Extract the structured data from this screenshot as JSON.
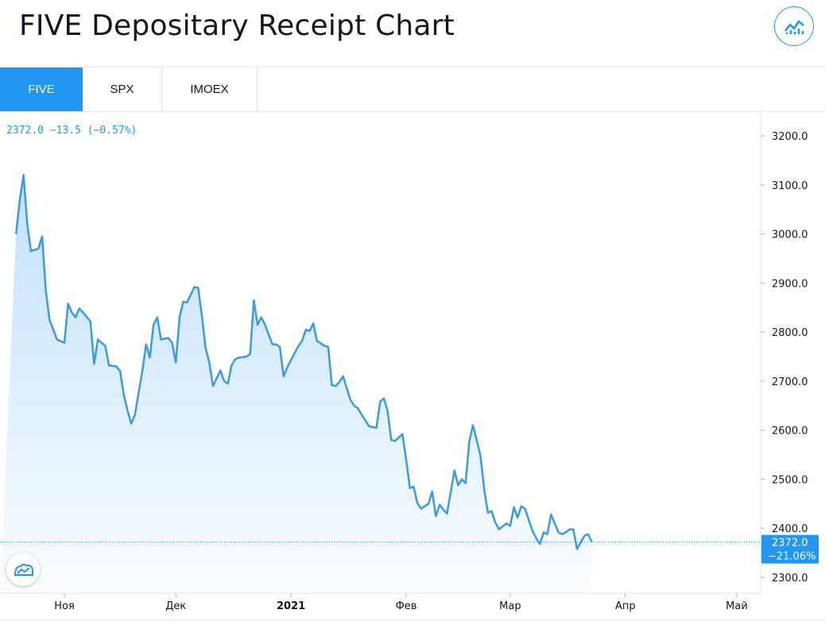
{
  "header": {
    "title": "FIVE Depositary Receipt Chart",
    "logo_icon": "chart-trend-icon"
  },
  "tabs": [
    {
      "label": "FIVE",
      "active": true
    },
    {
      "label": "SPX",
      "active": false
    },
    {
      "label": "IMOEX",
      "active": false
    }
  ],
  "legend": {
    "text": "2372.0  −13.5 (−0.57%)"
  },
  "last_price": {
    "value": "2372.0",
    "change": "−21.06%"
  },
  "colors": {
    "accent": "#2196f3",
    "line": "#3a9ae4",
    "text": "#131722",
    "grid_border": "#e0e3eb"
  },
  "chart_data": {
    "type": "area",
    "title": "FIVE Depositary Receipt Chart",
    "y_ticks": [
      "3200.0",
      "3100.0",
      "3000.0",
      "2900.0",
      "2800.0",
      "2700.0",
      "2600.0",
      "2500.0",
      "2400.0",
      "2300.0"
    ],
    "x_ticks": [
      {
        "label": "Ноя",
        "date": "2020-11-01",
        "bold": false
      },
      {
        "label": "Дек",
        "date": "2020-12-01",
        "bold": false
      },
      {
        "label": "2021",
        "date": "2021-01-01",
        "bold": true
      },
      {
        "label": "Фев",
        "date": "2021-02-01",
        "bold": false
      },
      {
        "label": "Мар",
        "date": "2021-03-01",
        "bold": false
      },
      {
        "label": "Апр",
        "date": "2021-04-01",
        "bold": false
      },
      {
        "label": "Май",
        "date": "2021-05-01",
        "bold": false
      }
    ],
    "ylim": [
      2300,
      3200
    ],
    "xlim": [
      "2020-10-19",
      "2021-05-01"
    ],
    "last_value": 2372.0,
    "legend": "none",
    "grid": false,
    "series": [
      {
        "values": [
          [
            "2020-10-19",
            3000
          ],
          [
            "2020-10-20",
            3070
          ],
          [
            "2020-10-21",
            3120
          ],
          [
            "2020-10-22",
            3020
          ],
          [
            "2020-10-23",
            2965
          ],
          [
            "2020-10-25",
            2970
          ],
          [
            "2020-10-26",
            2995
          ],
          [
            "2020-10-27",
            2885
          ],
          [
            "2020-10-28",
            2825
          ],
          [
            "2020-10-29",
            2805
          ],
          [
            "2020-10-30",
            2785
          ],
          [
            "2020-11-01",
            2778
          ],
          [
            "2020-11-02",
            2858
          ],
          [
            "2020-11-03",
            2840
          ],
          [
            "2020-11-04",
            2830
          ],
          [
            "2020-11-05",
            2848
          ],
          [
            "2020-11-06",
            2840
          ],
          [
            "2020-11-08",
            2822
          ],
          [
            "2020-11-09",
            2735
          ],
          [
            "2020-11-10",
            2785
          ],
          [
            "2020-11-11",
            2778
          ],
          [
            "2020-11-12",
            2772
          ],
          [
            "2020-11-13",
            2732
          ],
          [
            "2020-11-15",
            2730
          ],
          [
            "2020-11-16",
            2720
          ],
          [
            "2020-11-17",
            2672
          ],
          [
            "2020-11-18",
            2640
          ],
          [
            "2020-11-19",
            2613
          ],
          [
            "2020-11-20",
            2632
          ],
          [
            "2020-11-22",
            2722
          ],
          [
            "2020-11-23",
            2775
          ],
          [
            "2020-11-24",
            2748
          ],
          [
            "2020-11-25",
            2815
          ],
          [
            "2020-11-26",
            2830
          ],
          [
            "2020-11-27",
            2785
          ],
          [
            "2020-11-29",
            2788
          ],
          [
            "2020-11-30",
            2778
          ],
          [
            "2020-12-01",
            2738
          ],
          [
            "2020-12-02",
            2830
          ],
          [
            "2020-12-03",
            2862
          ],
          [
            "2020-12-04",
            2860
          ],
          [
            "2020-12-06",
            2892
          ],
          [
            "2020-12-07",
            2890
          ],
          [
            "2020-12-08",
            2835
          ],
          [
            "2020-12-09",
            2768
          ],
          [
            "2020-12-10",
            2738
          ],
          [
            "2020-12-11",
            2690
          ],
          [
            "2020-12-13",
            2722
          ],
          [
            "2020-12-14",
            2700
          ],
          [
            "2020-12-15",
            2695
          ],
          [
            "2020-12-16",
            2732
          ],
          [
            "2020-12-17",
            2745
          ],
          [
            "2020-12-18",
            2748
          ],
          [
            "2020-12-20",
            2750
          ],
          [
            "2020-12-21",
            2755
          ],
          [
            "2020-12-22",
            2865
          ],
          [
            "2020-12-23",
            2815
          ],
          [
            "2020-12-24",
            2830
          ],
          [
            "2020-12-25",
            2815
          ],
          [
            "2020-12-27",
            2775
          ],
          [
            "2020-12-28",
            2775
          ],
          [
            "2020-12-29",
            2770
          ],
          [
            "2020-12-30",
            2710
          ],
          [
            "2020-12-31",
            2728
          ],
          [
            "2021-01-03",
            2772
          ],
          [
            "2021-01-04",
            2782
          ],
          [
            "2021-01-05",
            2805
          ],
          [
            "2021-01-06",
            2802
          ],
          [
            "2021-01-07",
            2818
          ],
          [
            "2021-01-08",
            2782
          ],
          [
            "2021-01-10",
            2772
          ],
          [
            "2021-01-11",
            2770
          ],
          [
            "2021-01-12",
            2692
          ],
          [
            "2021-01-13",
            2690
          ],
          [
            "2021-01-14",
            2698
          ],
          [
            "2021-01-15",
            2710
          ],
          [
            "2021-01-17",
            2662
          ],
          [
            "2021-01-18",
            2650
          ],
          [
            "2021-01-19",
            2645
          ],
          [
            "2021-01-20",
            2632
          ],
          [
            "2021-01-21",
            2620
          ],
          [
            "2021-01-22",
            2608
          ],
          [
            "2021-01-24",
            2605
          ],
          [
            "2021-01-25",
            2658
          ],
          [
            "2021-01-26",
            2665
          ],
          [
            "2021-01-27",
            2640
          ],
          [
            "2021-01-28",
            2580
          ],
          [
            "2021-01-29",
            2578
          ],
          [
            "2021-01-31",
            2592
          ],
          [
            "2021-02-01",
            2540
          ],
          [
            "2021-02-02",
            2482
          ],
          [
            "2021-02-03",
            2485
          ],
          [
            "2021-02-04",
            2452
          ],
          [
            "2021-02-05",
            2440
          ],
          [
            "2021-02-07",
            2450
          ],
          [
            "2021-02-08",
            2475
          ],
          [
            "2021-02-09",
            2425
          ],
          [
            "2021-02-10",
            2448
          ],
          [
            "2021-02-11",
            2438
          ],
          [
            "2021-02-12",
            2430
          ],
          [
            "2021-02-14",
            2518
          ],
          [
            "2021-02-15",
            2488
          ],
          [
            "2021-02-16",
            2500
          ],
          [
            "2021-02-17",
            2492
          ],
          [
            "2021-02-18",
            2578
          ],
          [
            "2021-02-19",
            2610
          ],
          [
            "2021-02-21",
            2548
          ],
          [
            "2021-02-22",
            2480
          ],
          [
            "2021-02-23",
            2432
          ],
          [
            "2021-02-24",
            2435
          ],
          [
            "2021-02-25",
            2412
          ],
          [
            "2021-02-26",
            2398
          ],
          [
            "2021-02-28",
            2410
          ],
          [
            "2021-03-01",
            2405
          ],
          [
            "2021-03-02",
            2443
          ],
          [
            "2021-03-03",
            2422
          ],
          [
            "2021-03-04",
            2445
          ],
          [
            "2021-03-05",
            2440
          ],
          [
            "2021-03-07",
            2395
          ],
          [
            "2021-03-08",
            2380
          ],
          [
            "2021-03-09",
            2368
          ],
          [
            "2021-03-10",
            2392
          ],
          [
            "2021-03-11",
            2388
          ],
          [
            "2021-03-12",
            2428
          ],
          [
            "2021-03-14",
            2392
          ],
          [
            "2021-03-15",
            2388
          ],
          [
            "2021-03-16",
            2392
          ],
          [
            "2021-03-17",
            2398
          ],
          [
            "2021-03-18",
            2398
          ],
          [
            "2021-03-19",
            2358
          ],
          [
            "2021-03-21",
            2385
          ],
          [
            "2021-03-22",
            2388
          ],
          [
            "2021-03-23",
            2372
          ]
        ]
      }
    ]
  }
}
